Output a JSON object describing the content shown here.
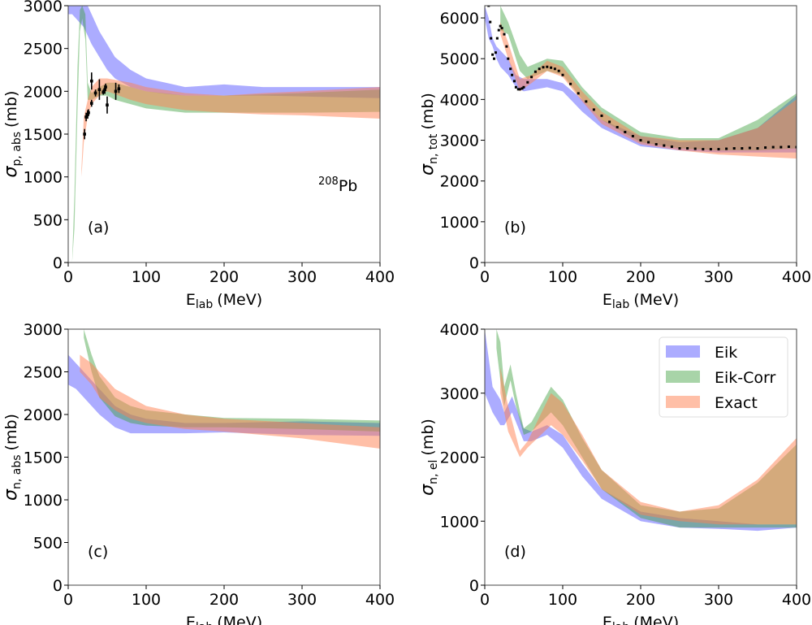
{
  "colors": {
    "Eik": "#5a5aff",
    "Eik-Corr": "#3fa03f",
    "Exact": "#ff8050",
    "data": "#000000"
  },
  "legend": {
    "placement": "upper-right",
    "panel": "d",
    "entries": [
      "Eik",
      "Eik-Corr",
      "Exact"
    ]
  },
  "chart_data": [
    {
      "id": "a",
      "type": "area",
      "panel_label": "(a)",
      "annotation": {
        "sup": "208",
        "text": "Pb"
      },
      "xlabel": {
        "main": "E",
        "sub": "lab",
        "unit": "(MeV)"
      },
      "ylabel": {
        "main": "σ",
        "sub": "p, abs",
        "unit": "(mb)"
      },
      "xlim": [
        0,
        400
      ],
      "ylim": [
        0,
        3000
      ],
      "xticks": [
        0,
        100,
        200,
        300,
        400
      ],
      "yticks": [
        0,
        500,
        1000,
        1500,
        2000,
        2500,
        3000
      ],
      "grid": false,
      "series": [
        {
          "name": "Eik",
          "x": [
            0,
            5,
            10,
            15,
            20,
            25,
            30,
            40,
            50,
            60,
            80,
            100,
            125,
            150,
            200,
            250,
            300,
            350,
            400
          ],
          "lo": [
            2900,
            2900,
            2850,
            2800,
            2750,
            2650,
            2550,
            2400,
            2250,
            2150,
            2050,
            2000,
            1970,
            1950,
            1950,
            1950,
            1940,
            1930,
            1920
          ],
          "hi": [
            3000,
            3000,
            3000,
            3000,
            3000,
            3000,
            2900,
            2700,
            2550,
            2400,
            2250,
            2150,
            2100,
            2050,
            2080,
            2050,
            2050,
            2050,
            2050
          ]
        },
        {
          "name": "Eik-Corr",
          "x": [
            5,
            8,
            12,
            15,
            18,
            22,
            25,
            30,
            40,
            50,
            60,
            80,
            100,
            150,
            200,
            300,
            400
          ],
          "lo": [
            0,
            400,
            1800,
            2700,
            2850,
            2600,
            1900,
            1900,
            1950,
            1950,
            1900,
            1850,
            1800,
            1750,
            1750,
            1750,
            1760
          ],
          "hi": [
            0,
            800,
            2300,
            2950,
            3000,
            2900,
            2100,
            1980,
            2050,
            2100,
            2100,
            2050,
            2000,
            1950,
            1950,
            1980,
            2020
          ]
        },
        {
          "name": "Exact",
          "x": [
            17,
            20,
            25,
            30,
            40,
            50,
            80,
            100,
            150,
            200,
            250,
            300,
            400
          ],
          "lo": [
            1000,
            1400,
            1700,
            1850,
            1950,
            2000,
            1900,
            1850,
            1780,
            1750,
            1730,
            1720,
            1680
          ],
          "hi": [
            1100,
            1700,
            1900,
            2050,
            2150,
            2150,
            2100,
            2050,
            1980,
            1950,
            1980,
            2000,
            2050
          ]
        }
      ],
      "data_points": {
        "x": [
          21,
          23,
          25,
          26,
          30,
          30,
          35,
          40,
          45,
          47,
          48,
          50,
          61,
          65
        ],
        "y": [
          1500,
          1700,
          1730,
          1750,
          1860,
          2120,
          1980,
          2020,
          1990,
          2020,
          2050,
          1840,
          2000,
          2030
        ],
        "err": [
          60,
          50,
          50,
          40,
          40,
          100,
          40,
          120,
          30,
          50,
          40,
          100,
          100,
          50
        ]
      }
    },
    {
      "id": "b",
      "type": "area",
      "panel_label": "(b)",
      "xlabel": {
        "main": "E",
        "sub": "lab",
        "unit": "(MeV)"
      },
      "ylabel": {
        "main": "σ",
        "sub": "n, tot",
        "unit": "(mb)"
      },
      "xlim": [
        0,
        400
      ],
      "ylim": [
        0,
        6300
      ],
      "xticks": [
        0,
        100,
        200,
        300,
        400
      ],
      "yticks": [
        0,
        1000,
        2000,
        3000,
        4000,
        5000,
        6000
      ],
      "grid": false,
      "series": [
        {
          "name": "Eik",
          "x": [
            0,
            5,
            10,
            15,
            20,
            30,
            40,
            50,
            80,
            100,
            125,
            150,
            200,
            250,
            300,
            350,
            400
          ],
          "lo": [
            6000,
            5500,
            5300,
            5000,
            4800,
            4600,
            4300,
            4200,
            4300,
            4200,
            3700,
            3300,
            2850,
            2750,
            2700,
            2700,
            2700
          ],
          "hi": [
            6300,
            6000,
            5500,
            5300,
            5200,
            5000,
            4600,
            4500,
            4500,
            4400,
            4000,
            3500,
            3100,
            2950,
            3000,
            3300,
            4100
          ]
        },
        {
          "name": "Eik-Corr",
          "x": [
            20,
            30,
            45,
            55,
            80,
            100,
            125,
            150,
            200,
            250,
            300,
            350,
            400
          ],
          "lo": [
            5700,
            5600,
            4700,
            4500,
            4700,
            4600,
            4000,
            3500,
            2950,
            2800,
            2750,
            2750,
            2800
          ],
          "hi": [
            6300,
            5900,
            5100,
            4800,
            5000,
            4950,
            4300,
            3800,
            3200,
            3050,
            3050,
            3500,
            4150
          ]
        },
        {
          "name": "Exact",
          "x": [
            20,
            30,
            45,
            60,
            80,
            100,
            125,
            150,
            200,
            250,
            300,
            350,
            400
          ],
          "lo": [
            5600,
            5000,
            4200,
            4400,
            4700,
            4550,
            3950,
            3400,
            2900,
            2750,
            2650,
            2600,
            2550
          ],
          "hi": [
            5900,
            5400,
            4500,
            4600,
            4950,
            4800,
            4200,
            3700,
            3100,
            3000,
            3000,
            3300,
            4000
          ]
        }
      ],
      "data_points": {
        "x": [
          5,
          7,
          8,
          10,
          12,
          14,
          16,
          18,
          20,
          22,
          25,
          28,
          30,
          33,
          35,
          38,
          40,
          43,
          45,
          48,
          50,
          55,
          60,
          65,
          70,
          75,
          80,
          85,
          90,
          95,
          100,
          110,
          120,
          130,
          140,
          150,
          160,
          170,
          180,
          190,
          200,
          210,
          220,
          230,
          240,
          250,
          260,
          270,
          280,
          290,
          300,
          310,
          320,
          330,
          340,
          350,
          360,
          370,
          380,
          390,
          400
        ],
        "y": [
          6300,
          5900,
          5500,
          5100,
          5000,
          5150,
          5500,
          5700,
          5800,
          5750,
          5600,
          5300,
          5000,
          4750,
          4600,
          4450,
          4300,
          4250,
          4250,
          4270,
          4300,
          4420,
          4550,
          4680,
          4750,
          4790,
          4800,
          4780,
          4750,
          4700,
          4600,
          4380,
          4150,
          3950,
          3750,
          3600,
          3450,
          3320,
          3200,
          3100,
          3000,
          2950,
          2900,
          2870,
          2840,
          2800,
          2800,
          2790,
          2780,
          2780,
          2780,
          2790,
          2800,
          2800,
          2810,
          2800,
          2820,
          2830,
          2830,
          2840,
          2830
        ],
        "err": []
      }
    },
    {
      "id": "c",
      "type": "area",
      "panel_label": "(c)",
      "xlabel": {
        "main": "E",
        "sub": "lab",
        "unit": "(MeV)"
      },
      "ylabel": {
        "main": "σ",
        "sub": "n, abs",
        "unit": "(mb)"
      },
      "xlim": [
        0,
        400
      ],
      "ylim": [
        0,
        3000
      ],
      "xticks": [
        0,
        100,
        200,
        300,
        400
      ],
      "yticks": [
        0,
        500,
        1000,
        1500,
        2000,
        2500,
        3000
      ],
      "grid": false,
      "series": [
        {
          "name": "Eik",
          "x": [
            0,
            10,
            20,
            40,
            60,
            80,
            100,
            150,
            200,
            300,
            400
          ],
          "lo": [
            2350,
            2300,
            2200,
            2000,
            1850,
            1780,
            1780,
            1780,
            1790,
            1760,
            1750
          ],
          "hi": [
            2700,
            2600,
            2500,
            2300,
            2100,
            2000,
            1950,
            1900,
            1900,
            1920,
            1900
          ]
        },
        {
          "name": "Eik-Corr",
          "x": [
            20,
            30,
            40,
            60,
            80,
            100,
            150,
            200,
            300,
            400
          ],
          "lo": [
            2900,
            2500,
            2200,
            1980,
            1900,
            1870,
            1850,
            1850,
            1830,
            1800
          ],
          "hi": [
            3000,
            2700,
            2450,
            2200,
            2100,
            2050,
            2000,
            1960,
            1950,
            1930
          ]
        },
        {
          "name": "Exact",
          "x": [
            15,
            30,
            40,
            60,
            80,
            100,
            150,
            200,
            300,
            400
          ],
          "lo": [
            2500,
            2350,
            2200,
            2050,
            1950,
            1900,
            1830,
            1800,
            1720,
            1600
          ],
          "hi": [
            2700,
            2600,
            2500,
            2300,
            2200,
            2100,
            2000,
            1950,
            1900,
            1850
          ]
        }
      ]
    },
    {
      "id": "d",
      "type": "area",
      "panel_label": "(d)",
      "xlabel": {
        "main": "E",
        "sub": "lab",
        "unit": "(MeV)"
      },
      "ylabel": {
        "main": "σ",
        "sub": "n, el",
        "unit": "(mb)"
      },
      "xlim": [
        0,
        400
      ],
      "ylim": [
        0,
        4000
      ],
      "xticks": [
        0,
        100,
        200,
        300,
        400
      ],
      "yticks": [
        0,
        1000,
        2000,
        3000,
        4000
      ],
      "grid": false,
      "series": [
        {
          "name": "Eik",
          "x": [
            0,
            10,
            20,
            25,
            35,
            50,
            60,
            80,
            100,
            125,
            150,
            200,
            250,
            300,
            350,
            400
          ],
          "lo": [
            3000,
            2700,
            2500,
            2500,
            2700,
            2250,
            2250,
            2350,
            2150,
            1700,
            1350,
            1000,
            900,
            880,
            850,
            900
          ],
          "hi": [
            4000,
            3100,
            2900,
            2700,
            2950,
            2450,
            2400,
            2500,
            2350,
            1900,
            1500,
            1150,
            1050,
            1000,
            950,
            950
          ]
        },
        {
          "name": "Eik-Corr",
          "x": [
            15,
            20,
            25,
            33,
            40,
            50,
            60,
            85,
            100,
            125,
            150,
            200,
            250,
            300,
            350,
            400
          ],
          "lo": [
            3700,
            3200,
            2800,
            3200,
            2800,
            2350,
            2400,
            2700,
            2500,
            2000,
            1500,
            1050,
            900,
            900,
            900,
            900
          ],
          "hi": [
            4000,
            3800,
            3100,
            3450,
            3000,
            2450,
            2550,
            3100,
            2900,
            2300,
            1800,
            1250,
            1150,
            1200,
            1600,
            2200
          ]
        },
        {
          "name": "Exact",
          "x": [
            20,
            30,
            45,
            55,
            85,
            100,
            125,
            150,
            200,
            250,
            300,
            350,
            400
          ],
          "lo": [
            3000,
            2400,
            2000,
            2150,
            2500,
            2350,
            1950,
            1500,
            1100,
            1000,
            950,
            950,
            950
          ],
          "hi": [
            3400,
            2800,
            2100,
            2250,
            3000,
            2850,
            2350,
            1800,
            1300,
            1150,
            1250,
            1650,
            2300
          ]
        }
      ]
    }
  ]
}
